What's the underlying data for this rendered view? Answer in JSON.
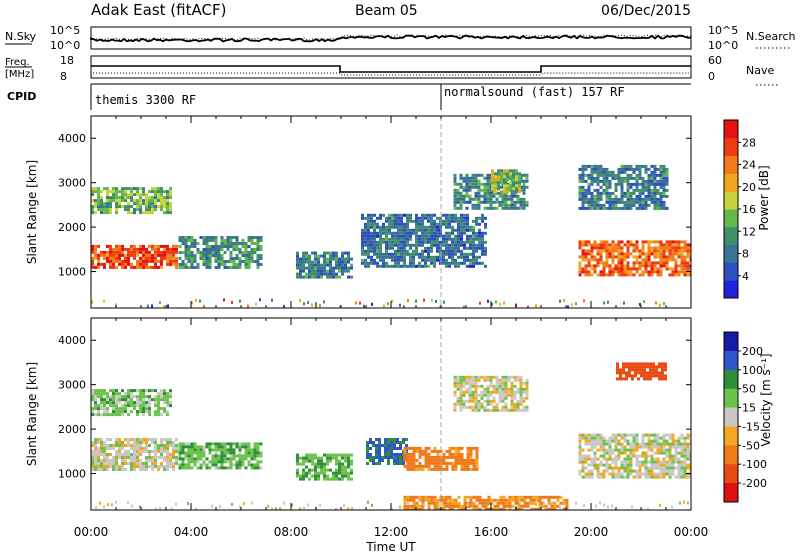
{
  "header": {
    "station": "Adak East (fitACF)",
    "beam": "Beam 05",
    "date": "06/Dec/2015"
  },
  "strip_panels": {
    "nsky": {
      "label": "N.Sky",
      "ticks": [
        "10^5",
        "10^0"
      ]
    },
    "nsearch": {
      "label": "N.Search",
      "ticks": [
        "10^5",
        "10^0"
      ]
    },
    "freq": {
      "label_line1": "Freq.",
      "label_line2": "[MHz]",
      "ticks": [
        "18",
        "8"
      ]
    },
    "nave": {
      "label": "Nave",
      "ticks": [
        "60",
        "0"
      ]
    },
    "cpid": {
      "label": "CPID",
      "segments": [
        {
          "name": "themis 3300 RF",
          "start_hour": 0
        },
        {
          "name": "normalsound (fast) 157 RF",
          "start_hour": 14
        }
      ]
    }
  },
  "chart_data": [
    {
      "type": "heatmap",
      "title": "",
      "ylabel": "Slant Range [km]",
      "xlabel": "",
      "ylim": [
        180,
        4500
      ],
      "yticks": [
        1000,
        2000,
        3000,
        4000
      ],
      "colorbar": {
        "label": "Power [dB]",
        "ticks": [
          4,
          8,
          12,
          16,
          20,
          24,
          28
        ],
        "range": [
          0,
          32
        ]
      },
      "regions": [
        {
          "t0": 0.0,
          "t1": 3.4,
          "r0": 1100,
          "r1": 1600,
          "value": 27
        },
        {
          "t0": 0.0,
          "t1": 3.2,
          "r0": 2300,
          "r1": 2900,
          "value": 14
        },
        {
          "t0": 3.5,
          "t1": 6.8,
          "r0": 1100,
          "r1": 1800,
          "value": 11
        },
        {
          "t0": 8.2,
          "t1": 10.4,
          "r0": 900,
          "r1": 1450,
          "value": 9
        },
        {
          "t0": 10.8,
          "t1": 15.8,
          "r0": 1100,
          "r1": 2300,
          "value": 8
        },
        {
          "t0": 14.5,
          "t1": 17.5,
          "r0": 2400,
          "r1": 3200,
          "value": 10
        },
        {
          "t0": 16.0,
          "t1": 17.2,
          "r0": 2800,
          "r1": 3300,
          "value": 16
        },
        {
          "t0": 19.5,
          "t1": 24.0,
          "r0": 950,
          "r1": 1700,
          "value": 25
        },
        {
          "t0": 19.5,
          "t1": 23.0,
          "r0": 2400,
          "r1": 3400,
          "value": 9
        }
      ]
    },
    {
      "type": "heatmap",
      "title": "",
      "ylabel": "Slant Range [km]",
      "xlabel": "Time UT",
      "ylim": [
        180,
        4500
      ],
      "yticks": [
        1000,
        2000,
        3000,
        4000
      ],
      "xticks": [
        "00:00",
        "04:00",
        "08:00",
        "12:00",
        "16:00",
        "20:00",
        "00:00"
      ],
      "colorbar": {
        "label": "Velocity [m s⁻¹]",
        "ticks": [
          200,
          100,
          50,
          15,
          -15,
          -50,
          -100,
          -200
        ]
      },
      "regions": [
        {
          "t0": 0.0,
          "t1": 3.4,
          "r0": 1100,
          "r1": 1800,
          "value": 0
        },
        {
          "t0": 0.0,
          "t1": 3.2,
          "r0": 2300,
          "r1": 2900,
          "value": 30
        },
        {
          "t0": 3.5,
          "t1": 6.8,
          "r0": 1100,
          "r1": 1700,
          "value": 40
        },
        {
          "t0": 8.2,
          "t1": 10.4,
          "r0": 900,
          "r1": 1450,
          "value": 45
        },
        {
          "t0": 11.0,
          "t1": 12.6,
          "r0": 1200,
          "r1": 1800,
          "value": 110
        },
        {
          "t0": 12.5,
          "t1": 15.5,
          "r0": 1100,
          "r1": 1600,
          "value": -70
        },
        {
          "t0": 12.5,
          "t1": 19.0,
          "r0": 200,
          "r1": 500,
          "value": -60
        },
        {
          "t0": 14.5,
          "t1": 17.5,
          "r0": 2400,
          "r1": 3200,
          "value": 0
        },
        {
          "t0": 19.5,
          "t1": 24.0,
          "r0": 950,
          "r1": 1900,
          "value": 0
        },
        {
          "t0": 21.0,
          "t1": 23.0,
          "r0": 3100,
          "r1": 3500,
          "value": -150
        }
      ]
    }
  ]
}
